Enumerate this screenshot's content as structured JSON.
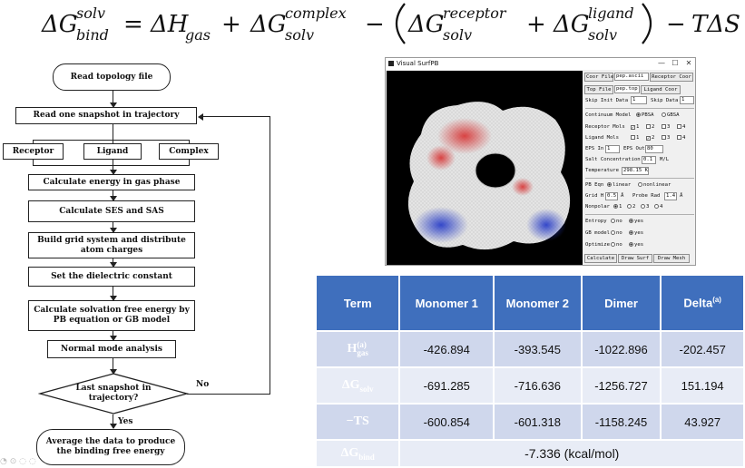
{
  "equation": {
    "lhs_symbol": "ΔG",
    "lhs_sup": "solv",
    "lhs_sub": "bind",
    "equals": "=",
    "t1_symbol": "ΔH",
    "t1_sub": "gas",
    "plus1": "+",
    "t2_symbol": "ΔG",
    "t2_sup": "complex",
    "t2_sub": "solv",
    "minus1": "−",
    "t3_symbol": "ΔG",
    "t3_sup": "receptor",
    "t3_sub": "solv",
    "plus2": "+",
    "t4_symbol": "ΔG",
    "t4_sup": "ligand",
    "t4_sub": "solv",
    "minus2": "−",
    "t5": "TΔS"
  },
  "flowchart": {
    "read_topology": "Read topology file",
    "read_snapshot": "Read one snapshot in trajectory",
    "receptor": "Receptor",
    "ligand": "Ligand",
    "complex": "Complex",
    "gas_phase": "Calculate energy in gas phase",
    "ses_sas": "Calculate SES and SAS",
    "grid_system": "Build grid system and distribute atom charges",
    "dielectric": "Set the dielectric constant",
    "solvation": "Calculate solvation free energy by PB equation or GB model",
    "normal_mode": "Normal mode analysis",
    "last_snapshot": "Last snapshot in trajectory?",
    "no_label": "No",
    "yes_label": "Yes",
    "average": "Average the data to produce the binding free energy"
  },
  "visual_surfpb": {
    "window_title": "Visual SurfPB",
    "win_minimize": "—",
    "win_maximize": "☐",
    "win_close": "✕",
    "coor_file_btn": "Coor File",
    "coor_file_value": "pep.ascii",
    "receptor_coor_btn": "Receptor Coor",
    "top_file_btn": "Top File",
    "top_file_value": "pep.top",
    "ligand_coor_btn": "Ligand Coor",
    "skip_init_label": "Skip Init Data",
    "skip_init_value": "1",
    "skip_data_label": "Skip Data",
    "skip_data_value": "1",
    "continuum_label": "Continuum Model",
    "pbsa": "PBSA",
    "gbsa": "GBSA",
    "receptor_mols_label": "Receptor Mols",
    "ligand_mols_label": "Ligand Mols",
    "mol_1": "1",
    "mol_2": "2",
    "mol_3": "3",
    "mol_4": "4",
    "eps_in_label": "EPS In",
    "eps_in_value": "1",
    "eps_out_label": "EPS Out",
    "eps_out_value": "80",
    "salt_label": "Salt Concentration",
    "salt_value": "0.1",
    "salt_unit": "M/L",
    "temp_label": "Temperature",
    "temp_value": "298.15 K",
    "pb_eqn_label": "PB Eqn",
    "linear": "linear",
    "nonlinear": "nonlinear",
    "grid_h_label": "Grid H",
    "grid_h_value": "0.5",
    "grid_h_unit": "Å",
    "probe_rad_label": "Probe Rad",
    "probe_rad_value": "1.4",
    "probe_rad_unit": "Å",
    "nonpolar_label": "Nonpolar",
    "np_1": "1",
    "np_2": "2",
    "np_3": "3",
    "np_4": "4",
    "entropy_label": "Entropy",
    "gb_model_label": "GB model",
    "optimize_label": "Optimize",
    "no": "no",
    "yes": "yes",
    "calculate_btn": "Calculate",
    "draw_surf_btn": "Draw Surf",
    "draw_mesh_btn": "Draw Mesh"
  },
  "table": {
    "headers": [
      "Term",
      "Monomer 1",
      "Monomer 2",
      "Dimer",
      "Delta"
    ],
    "delta_sup": "(a)",
    "rows": [
      {
        "term": "H",
        "term_sub": "gas",
        "term_sup": "(a)",
        "values": [
          "-426.894",
          "-393.545",
          "-1022.896",
          "-202.457"
        ]
      },
      {
        "term": "ΔG",
        "term_sub": "solv",
        "term_sup": "",
        "values": [
          "-691.285",
          "-716.636",
          "-1256.727",
          "151.194"
        ]
      },
      {
        "term": "−TS",
        "term_sub": "",
        "term_sup": "",
        "values": [
          "-600.854",
          "-601.318",
          "-1158.245",
          "43.927"
        ]
      }
    ],
    "bind_term": "ΔG",
    "bind_sub": "bind",
    "bind_value": "-7.336 (kcal/mol)"
  }
}
